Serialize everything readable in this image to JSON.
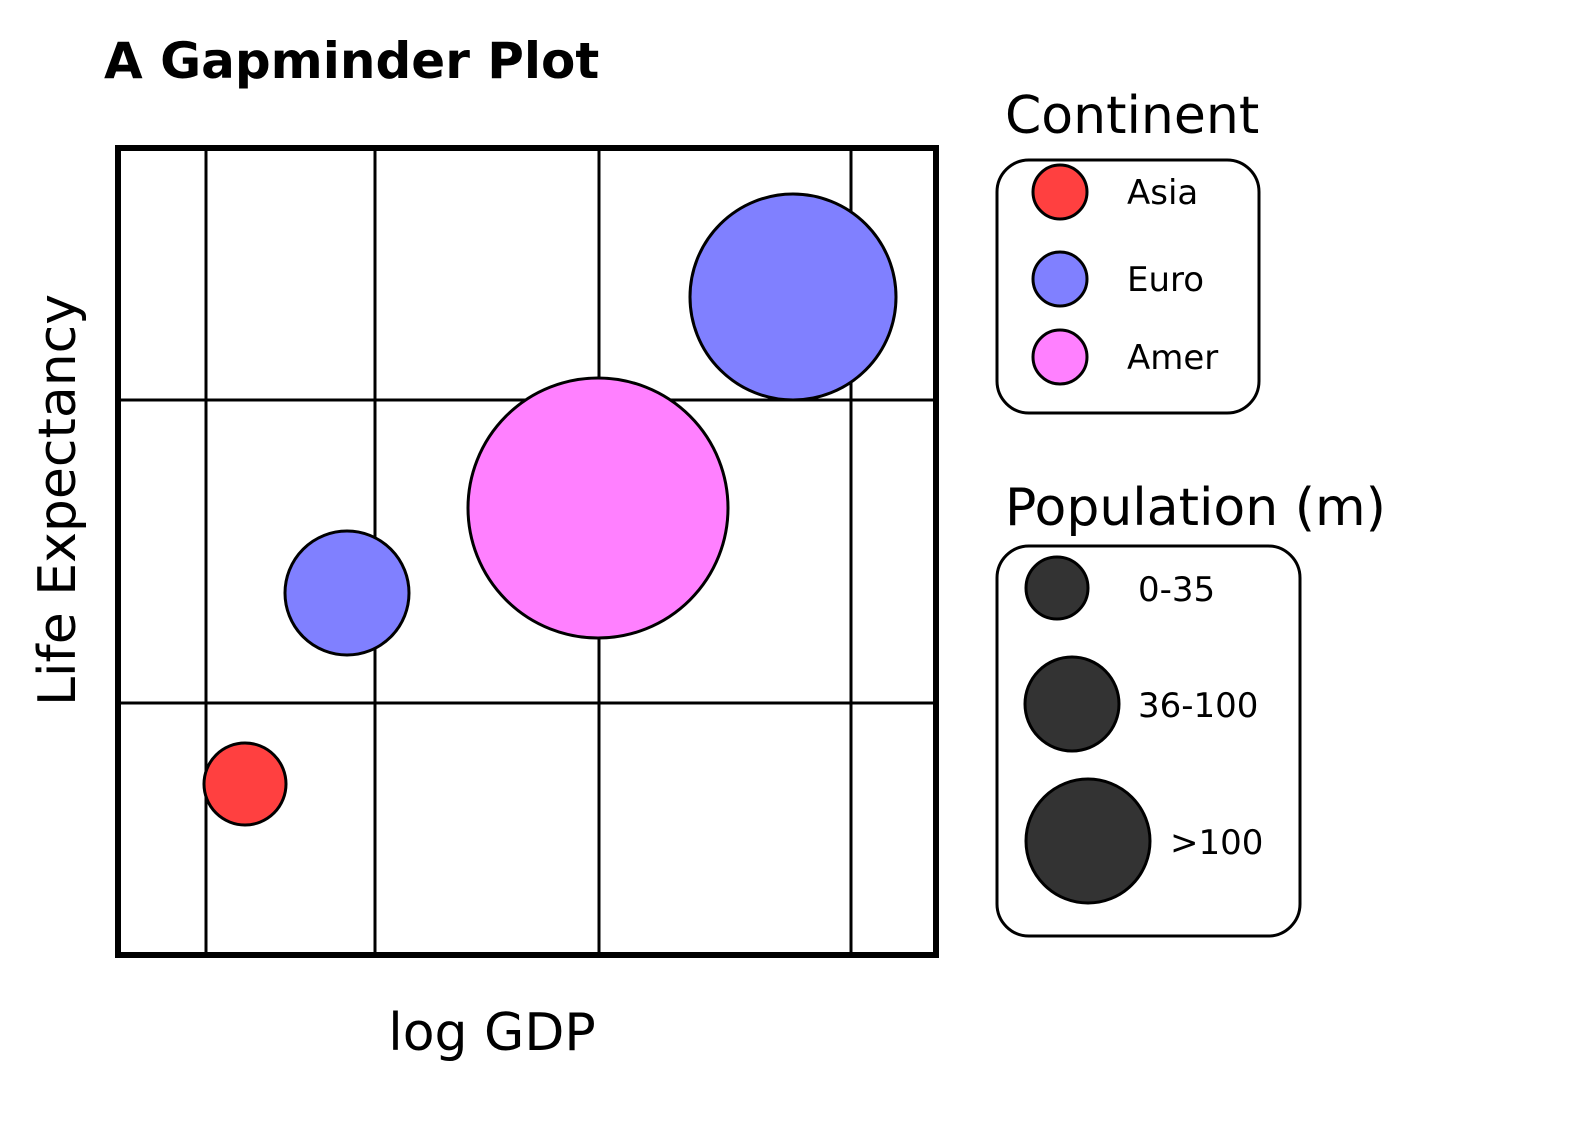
{
  "chart_data": {
    "type": "scatter",
    "title": "A Gapminder Plot",
    "xlabel": "log GDP",
    "ylabel": "Life Expectancy",
    "x_scale": "log",
    "grid": true,
    "colors": {
      "Asia": "#ff4040",
      "Euro": "#8080ff",
      "Amer": "#ff80ff",
      "size_legend": "#333333"
    },
    "points": [
      {
        "continent": "Asia",
        "population": "0-35"
      },
      {
        "continent": "Euro",
        "population": "36-100"
      },
      {
        "continent": "Amer",
        "population": ">100"
      },
      {
        "continent": "Euro",
        "population": ">100"
      }
    ],
    "legend": {
      "placement": "right",
      "continent_title": "Continent",
      "continents": [
        "Asia",
        "Euro",
        "Amer"
      ],
      "population_title": "Population (m)",
      "population_bins": [
        "0-35",
        "36-100",
        ">100"
      ]
    }
  }
}
